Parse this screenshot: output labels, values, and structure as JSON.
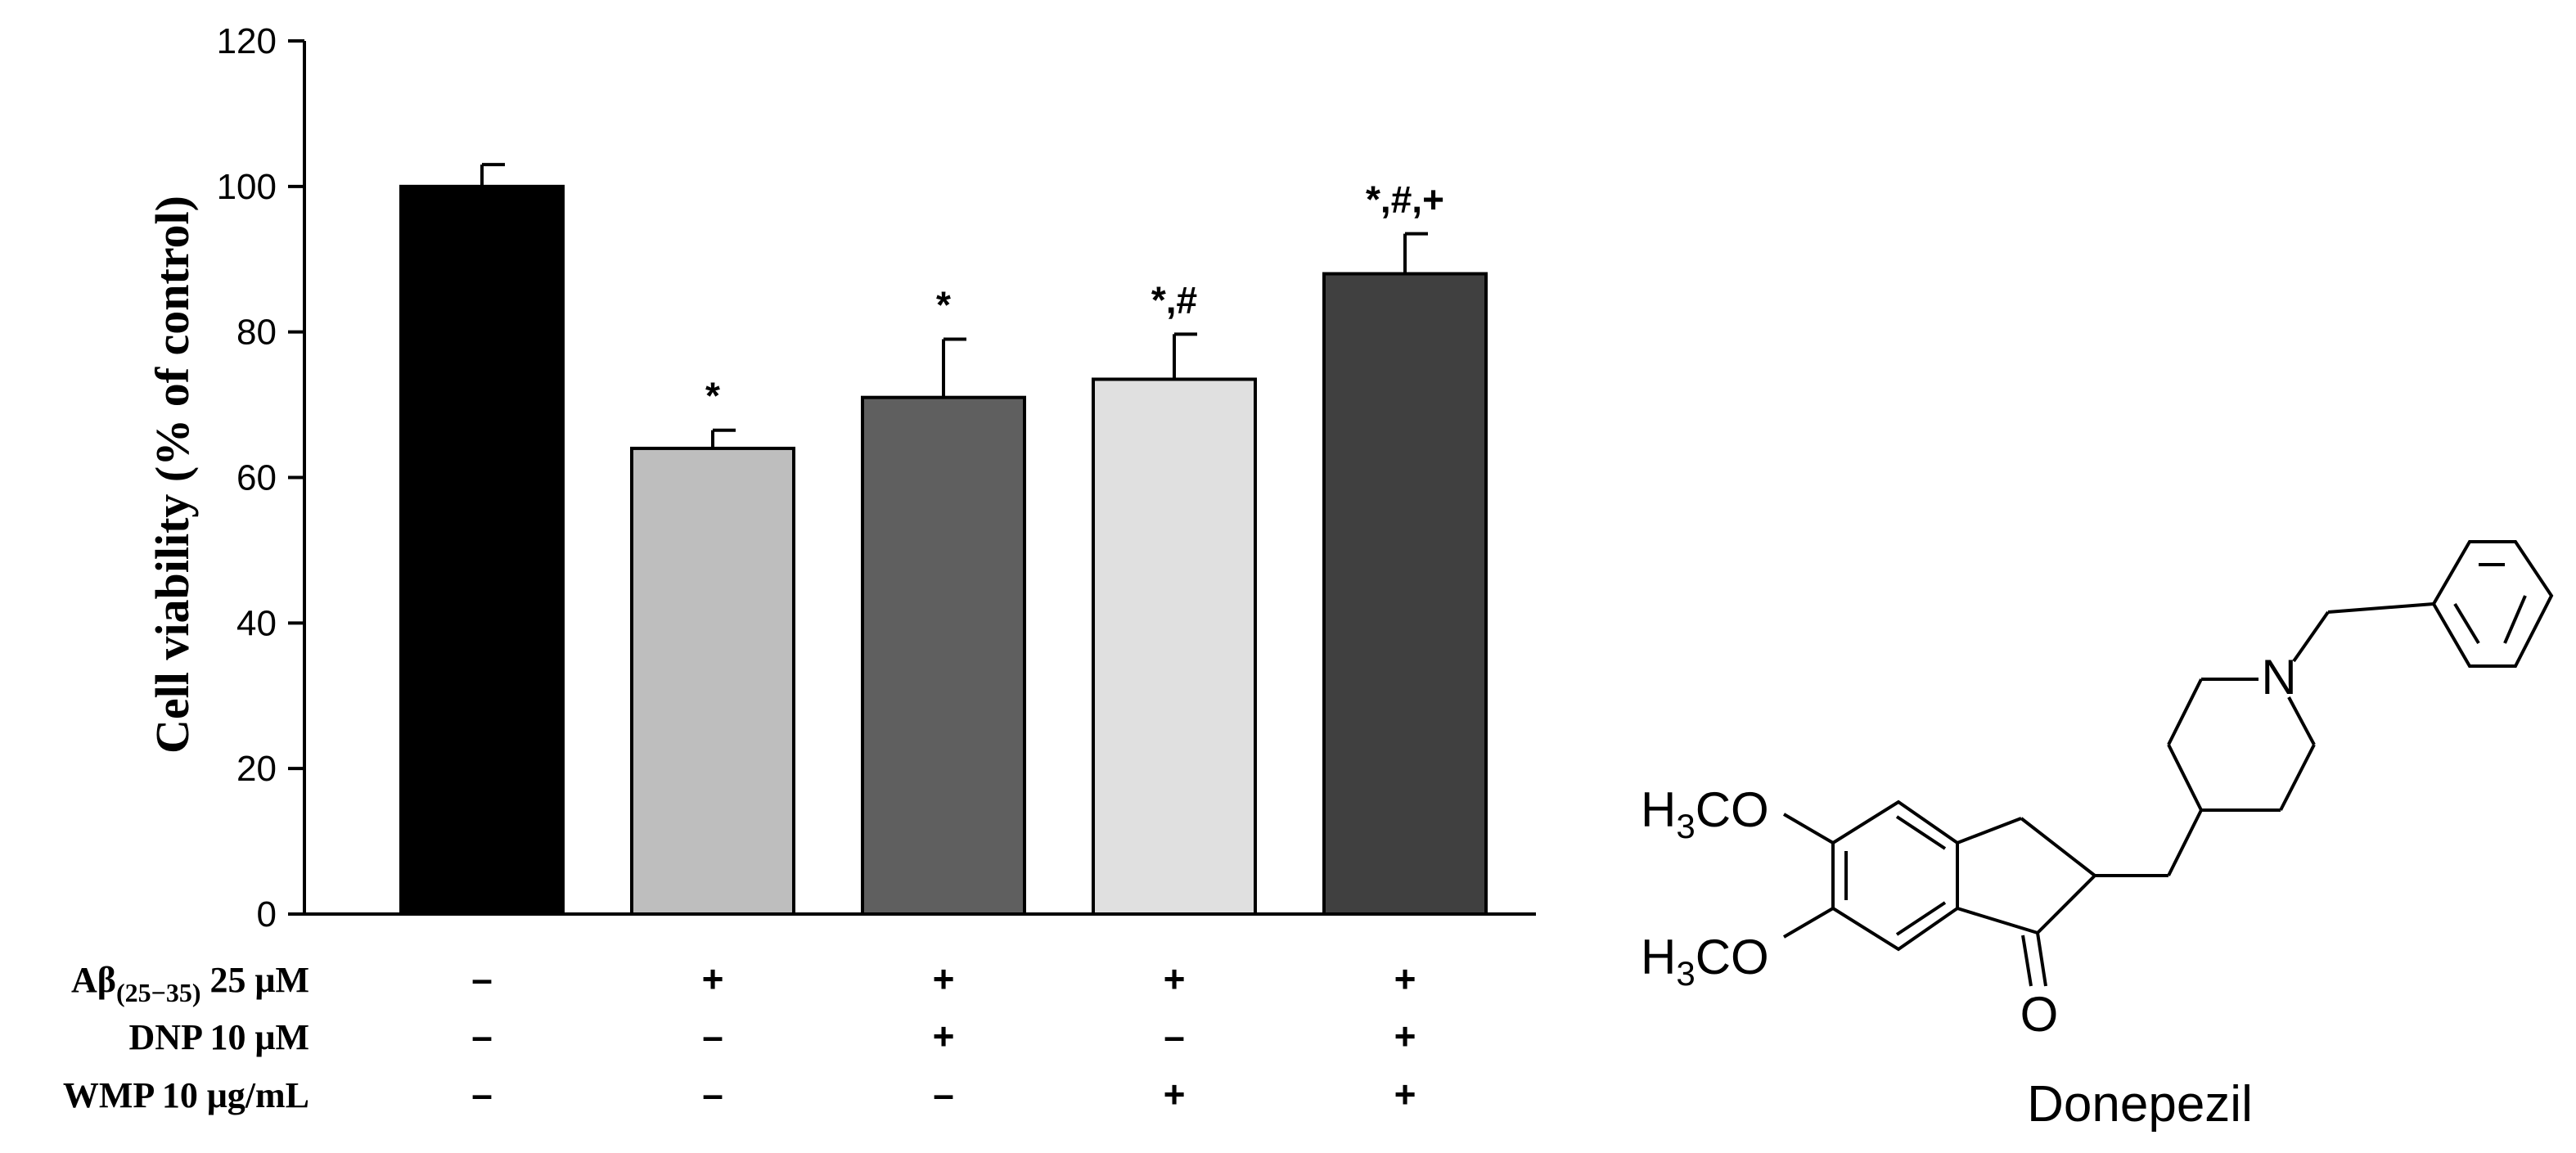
{
  "chart_data": {
    "type": "bar",
    "ylabel": "Cell viability (% of control)",
    "ylim": [
      0,
      120
    ],
    "yticks": [
      0,
      20,
      40,
      60,
      80,
      100,
      120
    ],
    "grid": false,
    "series": [
      {
        "values": [
          100,
          64,
          71,
          73.5,
          88
        ],
        "errors": [
          3,
          2.5,
          8,
          6.2,
          5.5
        ]
      }
    ],
    "bar_colors": [
      "#000000",
      "#bebebe",
      "#5f5f5f",
      "#e0e0e0",
      "#404040"
    ],
    "significance": [
      "",
      "*",
      "*",
      "*,#",
      "*,#,+"
    ],
    "treatment_rows": [
      {
        "label": "Aβ",
        "subscript": "(25−35)",
        "conc": "25 μM",
        "values": [
          "–",
          "+",
          "+",
          "+",
          "+"
        ]
      },
      {
        "label": "DNP",
        "subscript": "",
        "conc": "10 μM",
        "values": [
          "–",
          "–",
          "+",
          "–",
          "+"
        ]
      },
      {
        "label": "WMP",
        "subscript": "",
        "conc": "10 μg/mL",
        "values": [
          "–",
          "–",
          "–",
          "+",
          "+"
        ]
      }
    ]
  },
  "structure": {
    "name": "Donepezil",
    "groups": {
      "h": "H",
      "sub": "3",
      "co": "CO",
      "n": "N",
      "o": "O"
    }
  }
}
